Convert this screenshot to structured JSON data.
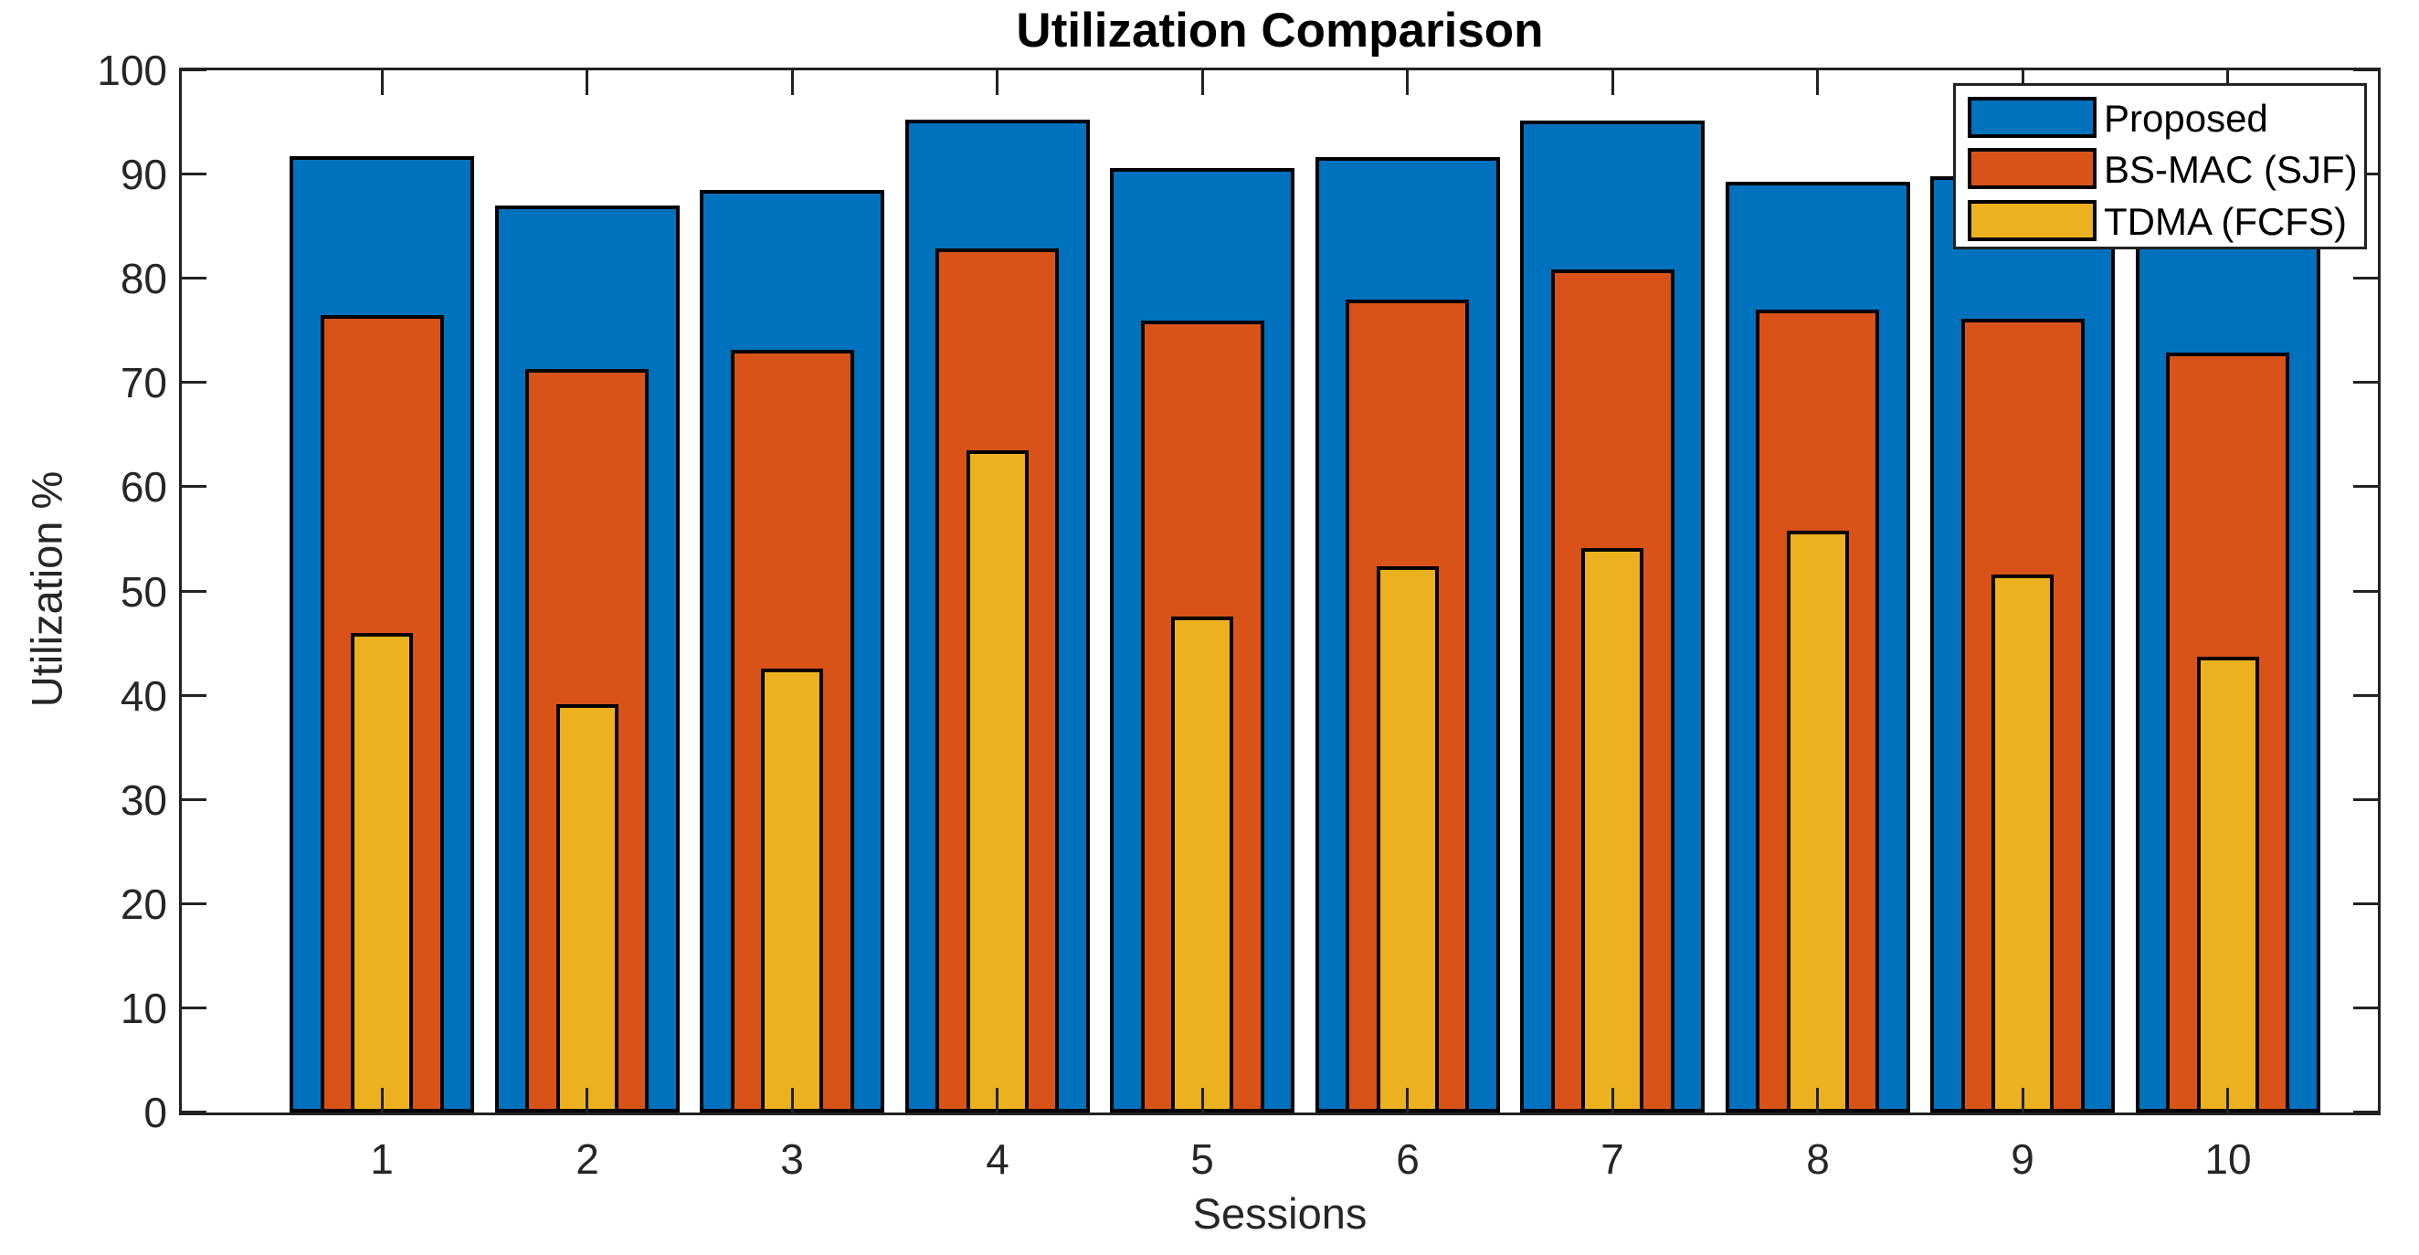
{
  "chart_data": {
    "type": "bar",
    "style": "overlaid-nested-bars",
    "title": "Utilization Comparison",
    "xlabel": "Sessions",
    "ylabel": "Utilization %",
    "categories": [
      "1",
      "2",
      "3",
      "4",
      "5",
      "6",
      "7",
      "8",
      "9",
      "10"
    ],
    "ylim": [
      0,
      100
    ],
    "y_ticks": [
      0,
      10,
      20,
      30,
      40,
      50,
      60,
      70,
      80,
      90,
      100
    ],
    "grid": false,
    "legend_position": "top-right-inside",
    "bar_edge_color": "#000000",
    "series": [
      {
        "name": "Proposed",
        "color": "#0072BD",
        "values": [
          91.8,
          87.0,
          88.5,
          95.3,
          90.6,
          91.7,
          95.2,
          89.3,
          89.8,
          91.0
        ],
        "note_last_value": "session 10 top hidden behind legend, estimated"
      },
      {
        "name": "BS-MAC (SJF)",
        "color": "#D95319",
        "values": [
          76.5,
          71.3,
          73.2,
          82.9,
          76.0,
          78.0,
          80.9,
          77.0,
          76.2,
          72.9
        ]
      },
      {
        "name": "TDMA (FCFS)",
        "color": "#EDB120",
        "values": [
          46.0,
          39.2,
          42.6,
          63.5,
          47.6,
          52.4,
          54.2,
          55.8,
          51.6,
          43.7
        ]
      }
    ]
  },
  "axis": {
    "color": "#262626",
    "tick_label_color": "#262626"
  }
}
